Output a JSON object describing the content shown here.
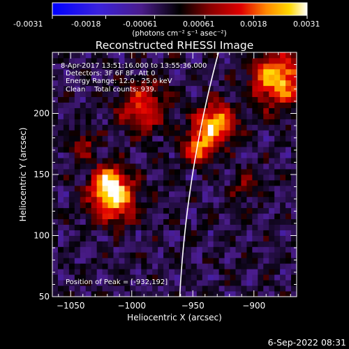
{
  "colorbar": {
    "ticks": [
      "-0.0031",
      "-0.0018",
      "-0.00061",
      "0.00061",
      "0.0018",
      "0.0031"
    ],
    "tick_values": [
      -0.0031,
      -0.0018,
      -0.00061,
      0.00061,
      0.0018,
      0.0031
    ],
    "range": [
      -0.0031,
      0.0031
    ],
    "unit_label": "(photons cm⁻² s⁻¹ asec⁻²)",
    "colormap": "blue-purple-black-red-orange-yellow-white"
  },
  "chart_data": {
    "type": "heatmap",
    "title": "Reconstructed RHESSI Image",
    "xlabel": "Heliocentric X (arcsec)",
    "ylabel": "Heliocentric Y (arcsec)",
    "xlim": [
      -1065,
      -865
    ],
    "ylim": [
      50,
      250
    ],
    "x_ticks": [
      -1050,
      -1000,
      -950,
      -900
    ],
    "y_ticks": [
      50,
      100,
      150,
      200
    ],
    "x_tick_labels": [
      "−1050",
      "−1000",
      "−950",
      "−900"
    ],
    "y_tick_labels": [
      "50",
      "100",
      "150",
      "200"
    ],
    "value_range": [
      -0.0031,
      0.0031
    ],
    "annotations": [
      "8-Apr-2017 13:51:16.000 to 13:55:36.000",
      "Detectors: 3F 6F 8F, Att 0",
      "Energy Range: 12.0 - 25.0 keV",
      "Clean    Total counts: 939.",
      "Position of Peak = [-932,192]"
    ],
    "peak": [
      -932,
      192
    ],
    "hot_sources": [
      {
        "x": -1015,
        "y": 130,
        "sigma": 13,
        "amp": 0.0031
      },
      {
        "x": -1020,
        "y": 145,
        "sigma": 9,
        "amp": 0.0022
      },
      {
        "x": -932,
        "y": 192,
        "sigma": 11,
        "amp": 0.0031
      },
      {
        "x": -945,
        "y": 172,
        "sigma": 9,
        "amp": 0.0024
      },
      {
        "x": -880,
        "y": 228,
        "sigma": 15,
        "amp": 0.0031
      },
      {
        "x": -990,
        "y": 205,
        "sigma": 14,
        "amp": 0.002
      },
      {
        "x": -1040,
        "y": 175,
        "sigma": 8,
        "amp": 0.0014
      },
      {
        "x": -905,
        "y": 140,
        "sigma": 9,
        "amp": 0.001
      }
    ],
    "limb_arc": {
      "center": [
        0,
        0
      ],
      "radius_arcsec": 962
    }
  },
  "footer": {
    "date": "6-Sep-2022 08:31"
  }
}
